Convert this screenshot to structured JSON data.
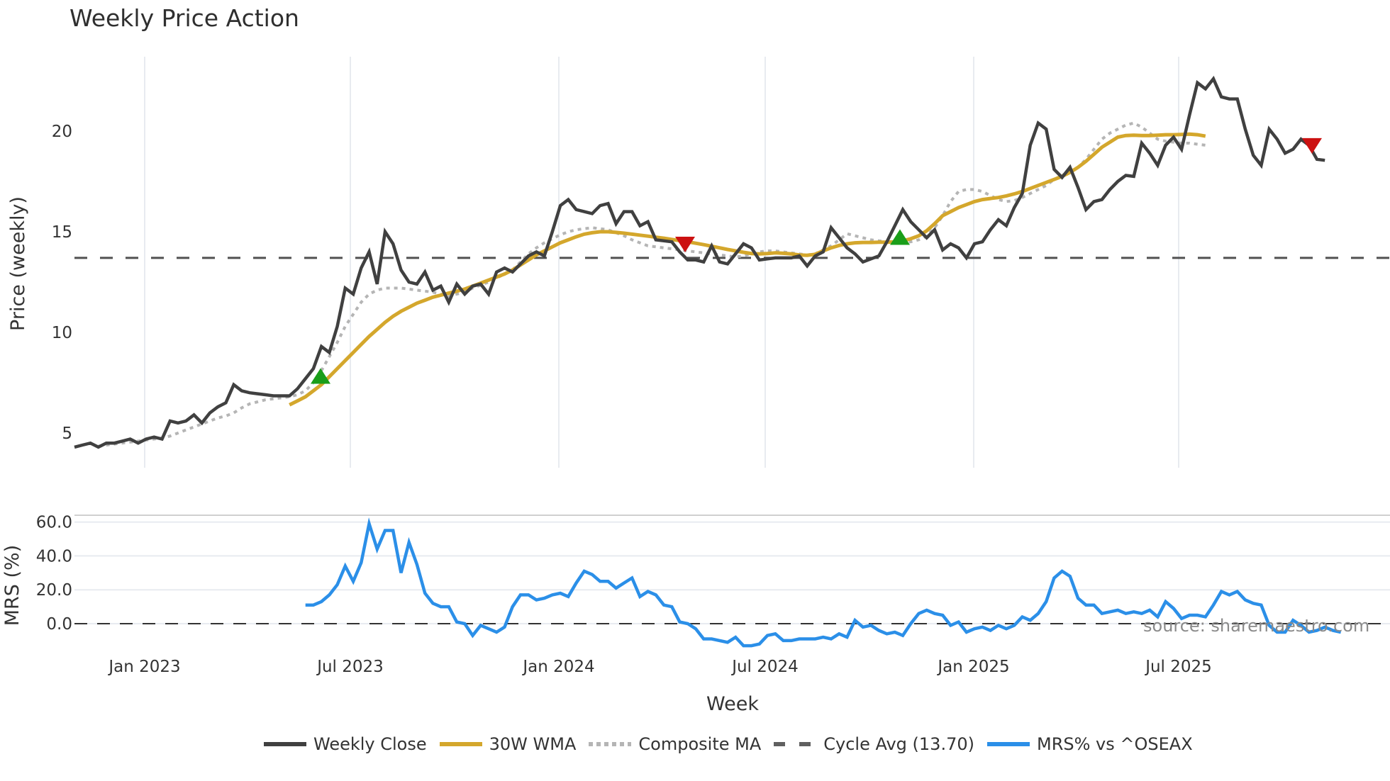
{
  "title": "Weekly Price Action",
  "source_text": "source: sharemaestro.com",
  "colors": {
    "weekly_close": "#404040",
    "wma": "#d4a72c",
    "composite": "#b5b5b5",
    "cycle_avg": "#505050",
    "mrs": "#2b8fe8",
    "buy_marker": "#1a9e1a",
    "sell_marker": "#cc1111",
    "grid": "#e8ebf0"
  },
  "legend": [
    {
      "key": "weekly_close",
      "label": "Weekly Close",
      "style": "solid"
    },
    {
      "key": "wma",
      "label": "30W WMA",
      "style": "solid"
    },
    {
      "key": "composite",
      "label": "Composite MA",
      "style": "dotted"
    },
    {
      "key": "cycle_avg",
      "label": "Cycle Avg (13.70)",
      "style": "dashed"
    },
    {
      "key": "mrs",
      "label": "MRS% vs ^OSEAX",
      "style": "solid"
    }
  ],
  "chart_data": [
    {
      "type": "line",
      "title": "Weekly Price Action",
      "xlabel": "Week",
      "ylabel": "Price (weekly)",
      "yticks": [
        5,
        10,
        15,
        20
      ],
      "ylim": [
        3.2,
        23.7
      ],
      "xticks": [
        "Jan 2023",
        "Jul 2023",
        "Jan 2024",
        "Jul 2024",
        "Jan 2025",
        "Jul 2025"
      ],
      "grid": true,
      "hline": {
        "name": "Cycle Avg (13.70)",
        "value": 13.7
      },
      "x_start": "2022-10-31",
      "x_step": "1 week",
      "series": [
        {
          "name": "Weekly Close",
          "values": [
            4.3,
            4.4,
            4.5,
            4.3,
            4.5,
            4.5,
            4.6,
            4.7,
            4.5,
            4.7,
            4.8,
            4.7,
            5.6,
            5.5,
            5.6,
            5.9,
            5.5,
            6.0,
            6.3,
            6.5,
            7.4,
            7.1,
            7.0,
            6.95,
            6.9,
            6.85,
            6.85,
            6.85,
            7.2,
            7.7,
            8.2,
            9.3,
            9.0,
            10.3,
            12.2,
            11.9,
            13.2,
            14.0,
            12.4,
            15.0,
            14.4,
            13.1,
            12.5,
            12.4,
            13.0,
            12.1,
            12.3,
            11.5,
            12.4,
            11.9,
            12.3,
            12.4,
            11.9,
            13.0,
            13.2,
            13.0,
            13.4,
            13.8,
            14.0,
            13.8,
            15.0,
            16.3,
            16.6,
            16.1,
            16.0,
            15.9,
            16.3,
            16.4,
            15.4,
            16.0,
            16.0,
            15.3,
            15.5,
            14.6,
            14.55,
            14.5,
            14.0,
            13.6,
            13.6,
            13.5,
            14.3,
            13.5,
            13.4,
            13.9,
            14.4,
            14.2,
            13.6,
            13.65,
            13.7,
            13.7,
            13.7,
            13.8,
            13.3,
            13.8,
            14.0,
            15.2,
            14.7,
            14.2,
            13.9,
            13.5,
            13.65,
            13.8,
            14.5,
            15.3,
            16.1,
            15.5,
            15.1,
            14.7,
            15.1,
            14.1,
            14.4,
            14.2,
            13.7,
            14.4,
            14.5,
            15.1,
            15.6,
            15.3,
            16.2,
            16.9,
            19.3,
            20.4,
            20.1,
            18.1,
            17.7,
            18.2,
            17.2,
            16.1,
            16.5,
            16.6,
            17.1,
            17.5,
            17.8,
            17.75,
            19.4,
            18.9,
            18.3,
            19.3,
            19.7,
            19.1,
            20.8,
            22.4,
            22.1,
            22.6,
            21.7,
            21.6,
            21.6,
            20.1,
            18.8,
            18.3,
            20.1,
            19.6,
            18.9,
            19.1,
            19.6,
            19.3,
            18.6,
            18.55
          ]
        },
        {
          "name": "30W WMA",
          "start_index": 27,
          "values": [
            6.4,
            6.6,
            6.8,
            7.1,
            7.4,
            7.8,
            8.2,
            8.6,
            9.0,
            9.4,
            9.8,
            10.15,
            10.5,
            10.8,
            11.05,
            11.25,
            11.45,
            11.6,
            11.75,
            11.85,
            11.95,
            12.05,
            12.15,
            12.3,
            12.45,
            12.6,
            12.75,
            12.9,
            13.1,
            13.35,
            13.6,
            13.85,
            14.05,
            14.25,
            14.45,
            14.6,
            14.75,
            14.88,
            14.95,
            15.0,
            15.0,
            14.97,
            14.93,
            14.88,
            14.83,
            14.78,
            14.73,
            14.68,
            14.62,
            14.56,
            14.5,
            14.43,
            14.36,
            14.28,
            14.2,
            14.12,
            14.05,
            13.98,
            13.92,
            13.9,
            13.92,
            13.95,
            13.93,
            13.9,
            13.85,
            13.83,
            13.88,
            14.05,
            14.2,
            14.32,
            14.4,
            14.45,
            14.47,
            14.47,
            14.48,
            14.48,
            14.5,
            14.55,
            14.65,
            14.8,
            15.05,
            15.4,
            15.8,
            16.0,
            16.2,
            16.35,
            16.5,
            16.6,
            16.65,
            16.7,
            16.78,
            16.88,
            17.0,
            17.15,
            17.3,
            17.45,
            17.6,
            17.75,
            17.95,
            18.2,
            18.5,
            18.85,
            19.2,
            19.45,
            19.7,
            19.78,
            19.8,
            19.78,
            19.78,
            19.8,
            19.82,
            19.82,
            19.83,
            19.85,
            19.82,
            19.75
          ]
        },
        {
          "name": "Composite MA",
          "start_index": 3,
          "values": [
            4.35,
            4.4,
            4.45,
            4.5,
            4.55,
            4.6,
            4.65,
            4.7,
            4.75,
            4.85,
            5.0,
            5.15,
            5.3,
            5.45,
            5.6,
            5.75,
            5.85,
            6.0,
            6.25,
            6.45,
            6.55,
            6.65,
            6.7,
            6.75,
            6.8,
            6.9,
            7.1,
            7.5,
            8.1,
            8.8,
            9.5,
            10.3,
            10.9,
            11.5,
            11.9,
            12.1,
            12.2,
            12.2,
            12.2,
            12.15,
            12.1,
            12.05,
            12.0,
            11.9,
            11.8,
            11.9,
            12.0,
            12.2,
            12.35,
            12.5,
            12.7,
            12.9,
            13.1,
            13.5,
            13.9,
            14.2,
            14.45,
            14.65,
            14.85,
            15.0,
            15.1,
            15.15,
            15.2,
            15.15,
            15.1,
            14.95,
            14.8,
            14.6,
            14.45,
            14.3,
            14.25,
            14.2,
            14.15,
            14.1,
            14.05,
            14.0,
            13.95,
            13.9,
            13.85,
            13.8,
            13.75,
            13.8,
            13.9,
            14.0,
            14.05,
            14.05,
            14.0,
            13.95,
            13.9,
            13.85,
            13.9,
            14.1,
            14.3,
            14.6,
            14.9,
            14.8,
            14.7,
            14.6,
            14.55,
            14.5,
            14.45,
            14.45,
            14.5,
            14.6,
            14.8,
            15.2,
            15.8,
            16.5,
            17.0,
            17.1,
            17.1,
            17.0,
            16.8,
            16.6,
            16.5,
            16.55,
            16.7,
            16.9,
            17.1,
            17.3,
            17.6,
            17.8,
            18.0,
            18.2,
            18.6,
            19.1,
            19.6,
            19.9,
            20.1,
            20.3,
            20.4,
            20.2,
            19.9,
            19.6,
            19.5,
            19.45,
            19.4,
            19.4,
            19.35,
            19.3
          ]
        },
        {
          "name": "Cycle Avg (13.70)",
          "constant": 13.7
        }
      ],
      "markers": [
        {
          "type": "buy",
          "index": 31,
          "value": 7.8
        },
        {
          "type": "sell",
          "index": 72,
          "value": 14.4
        },
        {
          "type": "buy",
          "index": 114,
          "value": 14.7
        },
        {
          "type": "sell",
          "index": 181,
          "value": 19.3
        }
      ]
    },
    {
      "type": "line",
      "title": "",
      "xlabel": "Week",
      "ylabel": "MRS (%)",
      "yticks": [
        0.0,
        20.0,
        40.0,
        60.0
      ],
      "ytick_labels": [
        "0.0",
        "20.0",
        "40.0",
        "60.0"
      ],
      "ylim": [
        -16,
        64
      ],
      "hline": {
        "value": 0.0
      },
      "series": [
        {
          "name": "MRS% vs ^OSEAX",
          "start_index": 29,
          "values": [
            11,
            11,
            13,
            17,
            23,
            34,
            25,
            36,
            59,
            44,
            55,
            55,
            30,
            48,
            35,
            18,
            12,
            10,
            10,
            1,
            0,
            -7,
            -1,
            -3,
            -5,
            -2,
            10,
            17,
            17,
            14,
            15,
            17,
            18,
            16,
            24,
            31,
            29,
            25,
            25,
            21,
            24,
            27,
            16,
            19,
            17,
            11,
            10,
            1,
            0,
            -3,
            -9,
            -9,
            -10,
            -11,
            -8,
            -13,
            -13,
            -12,
            -7,
            -6,
            -10,
            -10,
            -9,
            -9,
            -9,
            -8,
            -9,
            -6,
            -8,
            2,
            -2,
            -1,
            -4,
            -6,
            -5,
            -7,
            0,
            6,
            8,
            6,
            5,
            -1,
            1,
            -5,
            -3,
            -2,
            -4,
            -1,
            -3,
            -1,
            4,
            2,
            6,
            13,
            27,
            31,
            28,
            15,
            11,
            11,
            6,
            7,
            8,
            6,
            7,
            6,
            8,
            4,
            13,
            9,
            3,
            5,
            5,
            4,
            11,
            19,
            17,
            19,
            14,
            12,
            11,
            -1,
            -5,
            -5,
            2,
            -1,
            -5,
            -4,
            -2,
            -4,
            -5
          ]
        }
      ]
    }
  ],
  "axes": {
    "top": {
      "ylabel": "Price (weekly)",
      "yticks": [
        "5",
        "10",
        "15",
        "20"
      ]
    },
    "bottom": {
      "ylabel": "MRS (%)",
      "yticks": [
        "0.0",
        "20.0",
        "40.0",
        "60.0"
      ]
    },
    "xlabel": "Week",
    "xticks": [
      "Jan 2023",
      "Jul 2023",
      "Jan 2024",
      "Jul 2024",
      "Jan 2025",
      "Jul 2025"
    ]
  }
}
